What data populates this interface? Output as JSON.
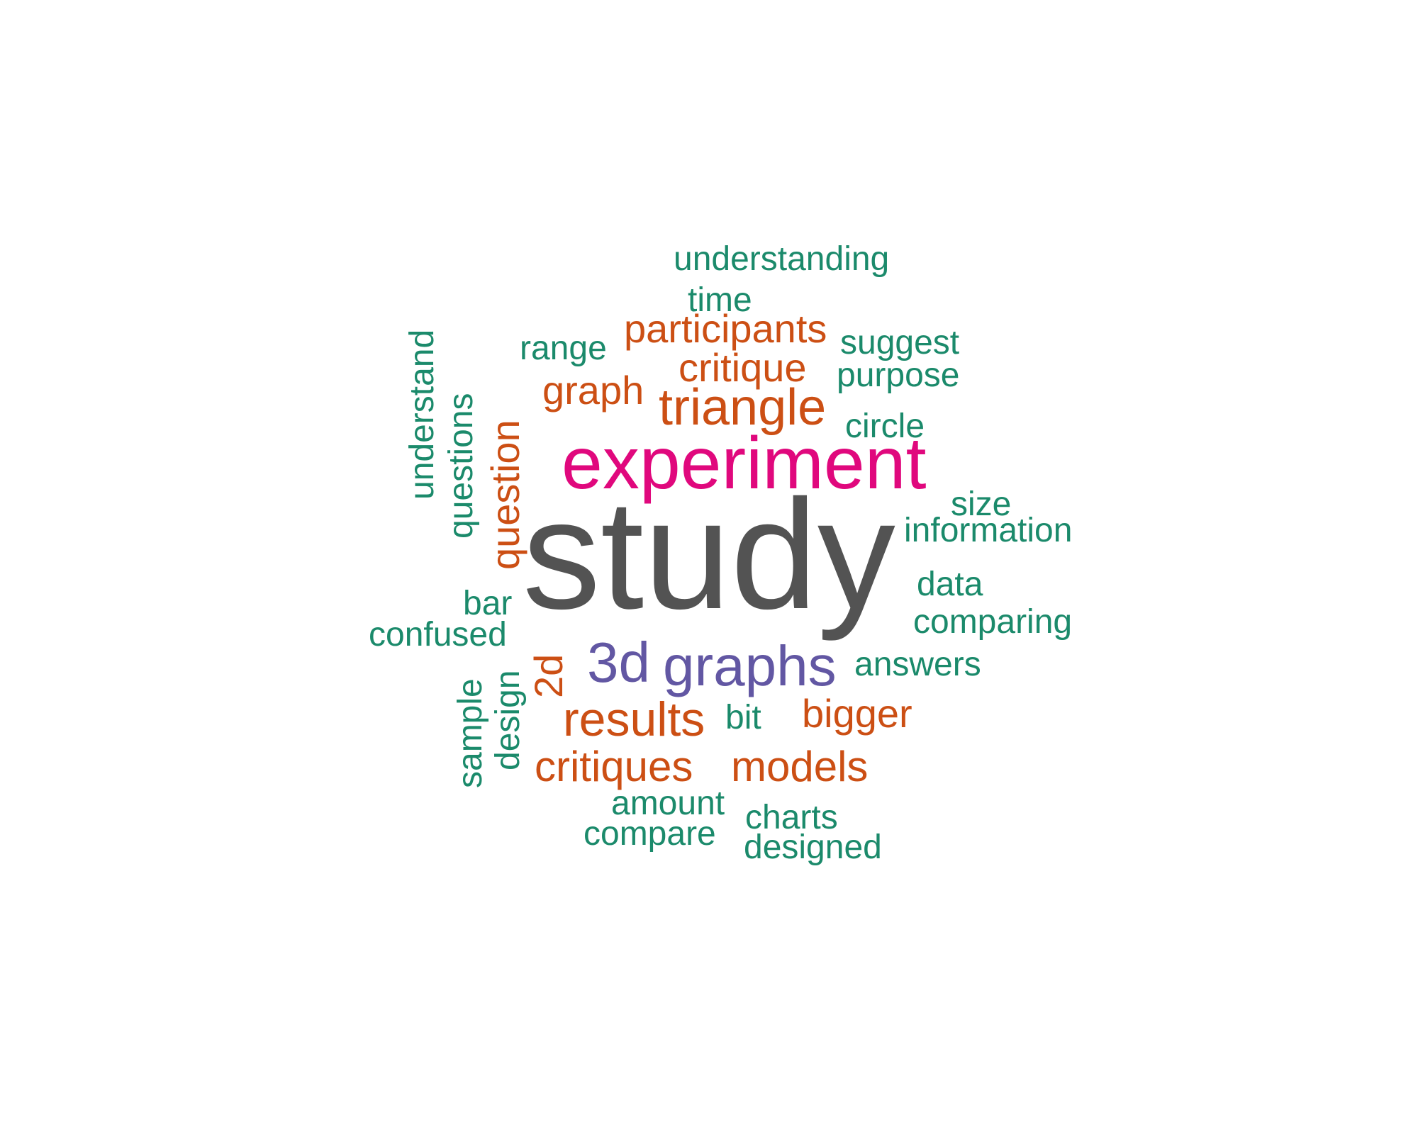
{
  "palette": {
    "green": "#1b8a6b",
    "orange": "#cc4f14",
    "purple": "#6257a3",
    "magenta": "#e0087d",
    "gray": "#535353"
  },
  "words": [
    {
      "text": "understanding",
      "color": "green"
    },
    {
      "text": "time",
      "color": "green"
    },
    {
      "text": "participants",
      "color": "orange"
    },
    {
      "text": "range",
      "color": "green"
    },
    {
      "text": "suggest",
      "color": "green"
    },
    {
      "text": "critique",
      "color": "orange"
    },
    {
      "text": "purpose",
      "color": "green"
    },
    {
      "text": "graph",
      "color": "orange"
    },
    {
      "text": "triangle",
      "color": "orange"
    },
    {
      "text": "circle",
      "color": "green"
    },
    {
      "text": "experiment",
      "color": "magenta"
    },
    {
      "text": "understand",
      "color": "green"
    },
    {
      "text": "questions",
      "color": "green"
    },
    {
      "text": "question",
      "color": "orange"
    },
    {
      "text": "size",
      "color": "green"
    },
    {
      "text": "information",
      "color": "green"
    },
    {
      "text": "study",
      "color": "gray"
    },
    {
      "text": "data",
      "color": "green"
    },
    {
      "text": "bar",
      "color": "green"
    },
    {
      "text": "comparing",
      "color": "green"
    },
    {
      "text": "confused",
      "color": "green"
    },
    {
      "text": "2d",
      "color": "orange"
    },
    {
      "text": "3d",
      "color": "purple"
    },
    {
      "text": "graphs",
      "color": "purple"
    },
    {
      "text": "answers",
      "color": "green"
    },
    {
      "text": "sample",
      "color": "green"
    },
    {
      "text": "design",
      "color": "green"
    },
    {
      "text": "results",
      "color": "orange"
    },
    {
      "text": "bit",
      "color": "green"
    },
    {
      "text": "bigger",
      "color": "orange"
    },
    {
      "text": "critiques",
      "color": "orange"
    },
    {
      "text": "models",
      "color": "orange"
    },
    {
      "text": "amount",
      "color": "green"
    },
    {
      "text": "charts",
      "color": "green"
    },
    {
      "text": "compare",
      "color": "green"
    },
    {
      "text": "designed",
      "color": "green"
    }
  ]
}
